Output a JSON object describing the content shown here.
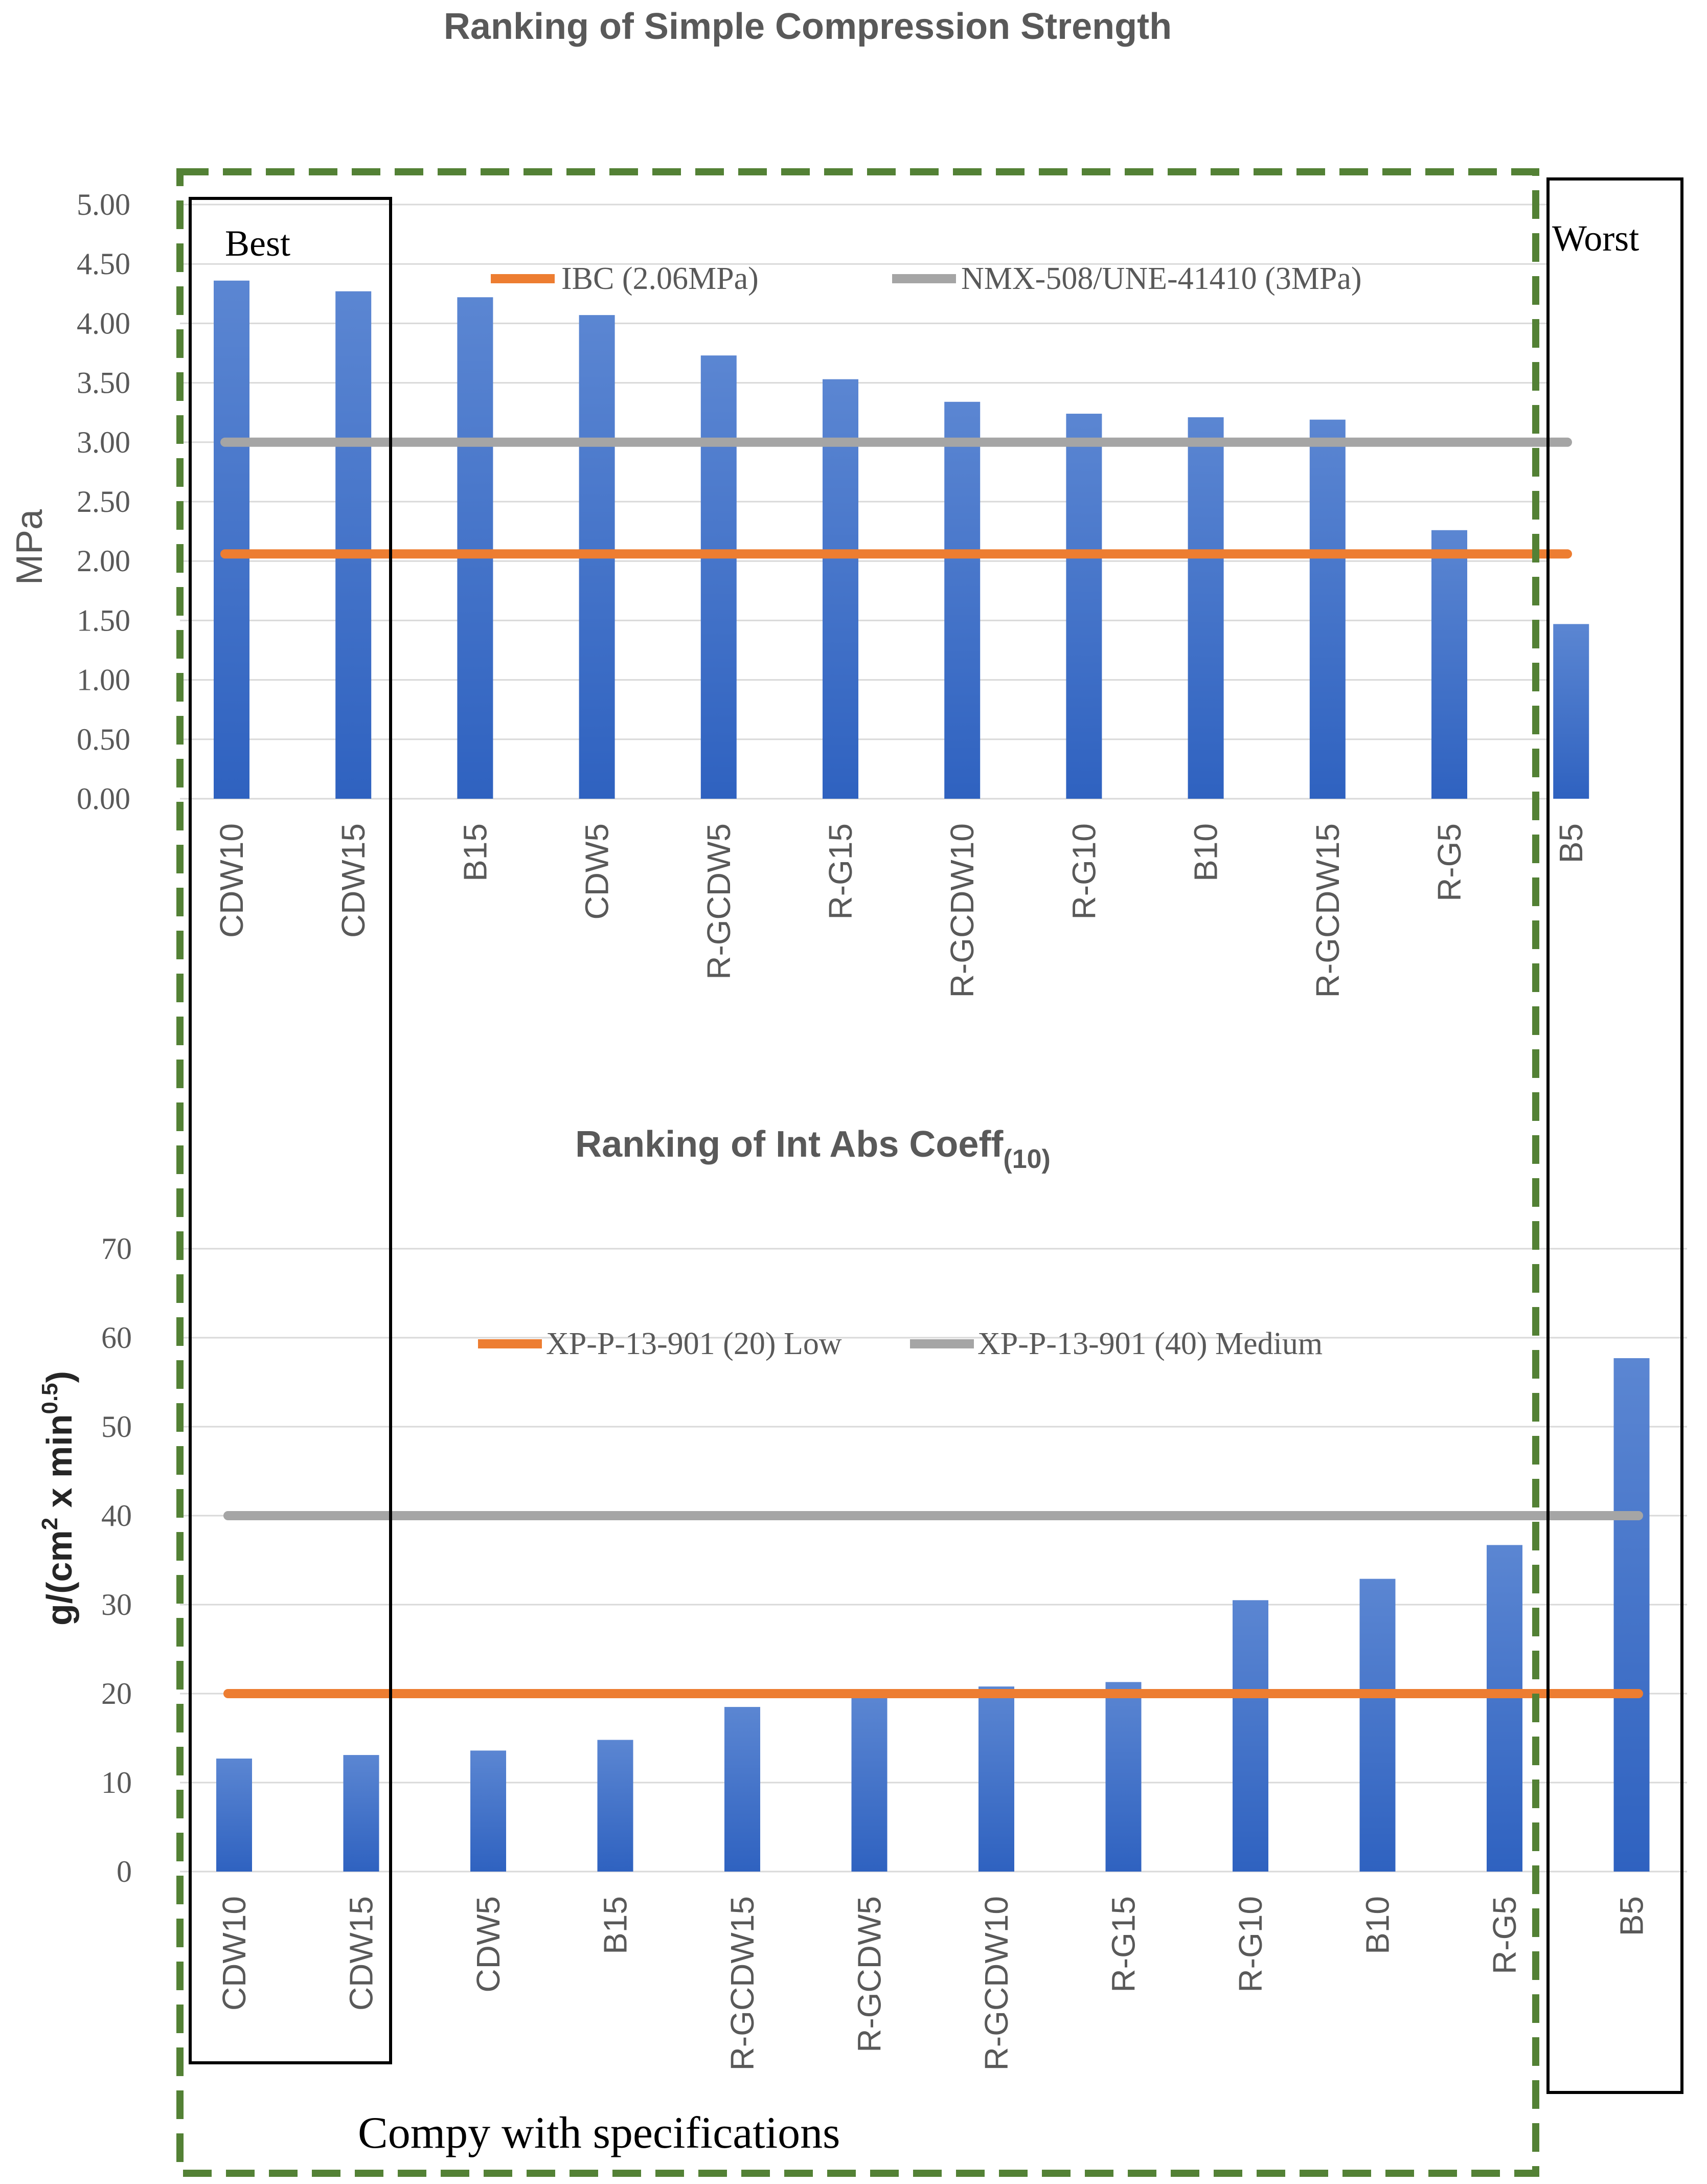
{
  "figure": {
    "best_label": "Best",
    "worst_label": "Worst",
    "comply_label": "Compy with specifications"
  },
  "colors": {
    "bar_top": "#5b86d2",
    "bar_bottom": "#2f62c0",
    "ref_orange": "#ed7d31",
    "ref_gray": "#a5a5a5",
    "grid": "#d9d9d9",
    "dashed_green": "#538135",
    "box": "#000000",
    "title": "#595959",
    "tick": "#595959"
  },
  "chart_data": [
    {
      "type": "bar",
      "title": "Ranking of Simple Compression Strength",
      "ylabel": "MPa",
      "xlabel": "",
      "ylim": [
        0,
        5
      ],
      "ytick_step": 0.5,
      "ytick_decimals": 2,
      "yticks": [
        "5.00",
        "4.50",
        "4.00",
        "3.50",
        "3.00",
        "2.50",
        "2.00",
        "1.50",
        "1.00",
        "0.50",
        "0.00"
      ],
      "grid": true,
      "categories": [
        "CDW10",
        "CDW15",
        "B15",
        "CDW5",
        "R-GCDW5",
        "R-G15",
        "R-GCDW10",
        "R-G10",
        "B10",
        "R-GCDW15",
        "R-G5",
        "B5"
      ],
      "values": [
        4.36,
        4.27,
        4.22,
        4.07,
        3.73,
        3.53,
        3.34,
        3.24,
        3.21,
        3.19,
        2.26,
        1.47
      ],
      "reference_lines": [
        {
          "name": "IBC (2.06MPa)",
          "value": 2.06,
          "color": "#ed7d31"
        },
        {
          "name": "NMX-508/UNE-41410 (3MPa)",
          "value": 3.0,
          "color": "#a5a5a5"
        }
      ],
      "legend_position": "top"
    },
    {
      "type": "bar",
      "title": "Ranking of Int Abs Coeff",
      "title_subscript": "(10)",
      "ylabel": "g/(cm",
      "ylabel_sup1": "2",
      "ylabel_mid": " x min",
      "ylabel_sup2": "0.5",
      "ylabel_end": ")",
      "xlabel": "",
      "ylim": [
        0,
        70
      ],
      "ytick_step": 10,
      "ytick_decimals": 0,
      "yticks": [
        "70",
        "60",
        "50",
        "40",
        "30",
        "20",
        "10",
        "0"
      ],
      "grid": true,
      "categories": [
        "CDW10",
        "CDW15",
        "CDW5",
        "B15",
        "R-GCDW15",
        "R-GCDW5",
        "R-GCDW10",
        "R-G15",
        "R-G10",
        "B10",
        "R-G5",
        "B5"
      ],
      "values": [
        12.7,
        13.1,
        13.6,
        14.8,
        18.5,
        19.7,
        20.8,
        21.3,
        30.5,
        32.9,
        36.7,
        57.7
      ],
      "reference_lines": [
        {
          "name": "XP-P-13-901 (20) Low",
          "value": 20,
          "color": "#ed7d31"
        },
        {
          "name": "XP-P-13-901 (40) Medium",
          "value": 40,
          "color": "#a5a5a5"
        }
      ],
      "legend_position": "top"
    }
  ]
}
